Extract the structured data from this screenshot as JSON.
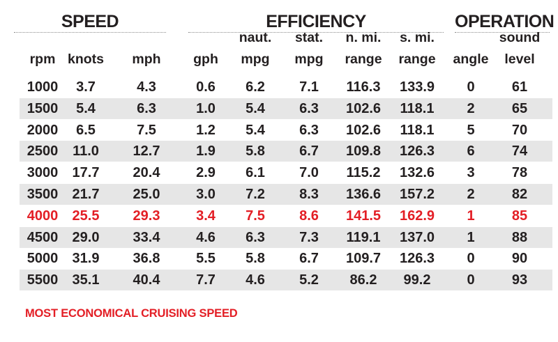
{
  "groups": {
    "speed": "SPEED",
    "efficiency": "EFFICIENCY",
    "operation": "OPERATION"
  },
  "headers": [
    {
      "top": "",
      "bottom": "rpm"
    },
    {
      "top": "",
      "bottom": "knots"
    },
    {
      "top": "",
      "bottom": "mph"
    },
    {
      "top": "",
      "bottom": "gph"
    },
    {
      "top": "naut.",
      "bottom": "mpg"
    },
    {
      "top": "stat.",
      "bottom": "mpg"
    },
    {
      "top": "n. mi.",
      "bottom": "range"
    },
    {
      "top": "s. mi.",
      "bottom": "range"
    },
    {
      "top": "",
      "bottom": "angle"
    },
    {
      "top": "sound",
      "bottom": "level"
    }
  ],
  "rows": [
    [
      "1000",
      "3.7",
      "4.3",
      "0.6",
      "6.2",
      "7.1",
      "116.3",
      "133.9",
      "0",
      "61"
    ],
    [
      "1500",
      "5.4",
      "6.3",
      "1.0",
      "5.4",
      "6.3",
      "102.6",
      "118.1",
      "2",
      "65"
    ],
    [
      "2000",
      "6.5",
      "7.5",
      "1.2",
      "5.4",
      "6.3",
      "102.6",
      "118.1",
      "5",
      "70"
    ],
    [
      "2500",
      "11.0",
      "12.7",
      "1.9",
      "5.8",
      "6.7",
      "109.8",
      "126.3",
      "6",
      "74"
    ],
    [
      "3000",
      "17.7",
      "20.4",
      "2.9",
      "6.1",
      "7.0",
      "115.2",
      "132.6",
      "3",
      "78"
    ],
    [
      "3500",
      "21.7",
      "25.0",
      "3.0",
      "7.2",
      "8.3",
      "136.6",
      "157.2",
      "2",
      "82"
    ],
    [
      "4000",
      "25.5",
      "29.3",
      "3.4",
      "7.5",
      "8.6",
      "141.5",
      "162.9",
      "1",
      "85"
    ],
    [
      "4500",
      "29.0",
      "33.4",
      "4.6",
      "6.3",
      "7.3",
      "119.1",
      "137.0",
      "1",
      "88"
    ],
    [
      "5000",
      "31.9",
      "36.8",
      "5.5",
      "5.8",
      "6.7",
      "109.7",
      "126.3",
      "0",
      "90"
    ],
    [
      "5500",
      "35.1",
      "40.4",
      "7.7",
      "4.6",
      "5.2",
      "86.2",
      "99.2",
      "0",
      "93"
    ]
  ],
  "highlight_row_index": 6,
  "highlight_color": "#e31e25",
  "shade_color": "#e6e6e6",
  "footnote": "MOST ECONOMICAL CRUISING SPEED"
}
